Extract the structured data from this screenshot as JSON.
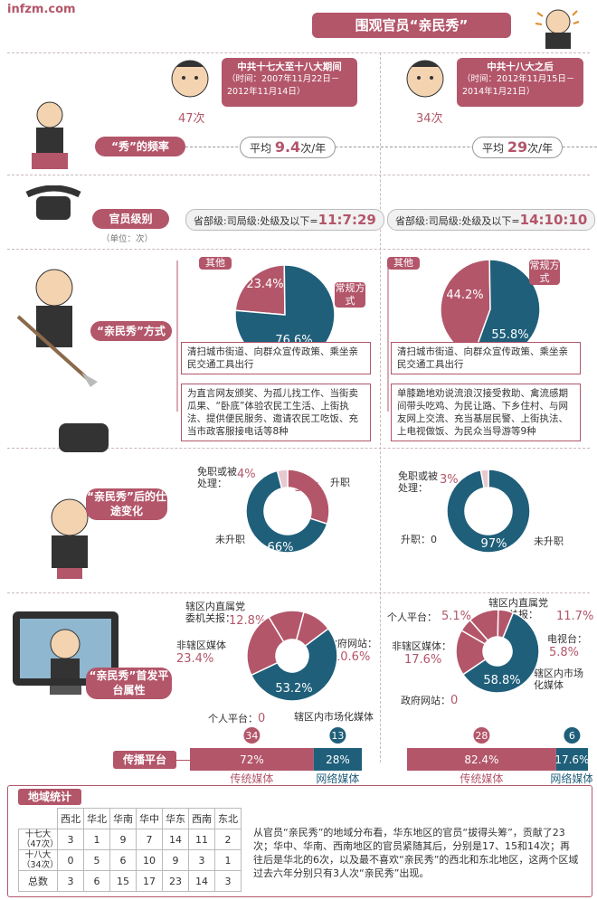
{
  "site": "infzm.com",
  "title": "围观官员“亲民秀”",
  "periods": [
    {
      "name": "中共十七大至十八大期间",
      "time": "（时间：2007年11月22日－2012年11月14日）",
      "count": "47次",
      "freq_label": "平均",
      "freq_value": "9.4",
      "freq_unit": "次/年",
      "levels_label": "省部级:司局级:处级及以下=",
      "levels_value": "11:7:29"
    },
    {
      "name": "中共十八大之后",
      "time": "（时间：2012年11月15日－2014年1月21日）",
      "count": "34次",
      "freq_label": "平均",
      "freq_value": "29",
      "freq_unit": "次/年",
      "levels_label": "省部级:司局级:处级及以下=",
      "levels_value": "14:10:10"
    }
  ],
  "row_labels": {
    "frequency": "“秀”的频率",
    "level": "官员级别",
    "level_unit": "（单位：次）",
    "method": "“亲民秀”方式",
    "career": "“亲民秀”后的仕途变化",
    "platform": "“亲民秀”首发平台属性",
    "spread": "传播平台"
  },
  "method": {
    "other_label": "其他",
    "regular_label": "常规方式",
    "left": {
      "regular_text": "清扫城市街道、向群众宣传政策、乘坐亲民交通工具出行",
      "other_text": "为直言网友颁奖、为孤儿找工作、当街卖瓜果、“卧底”体验农民工生活、上街执法、提供便民服务、邀请农民工吃饭、充当市政客服接电话等8种"
    },
    "right": {
      "regular_text": "清扫城市街道、向群众宣传政策、乘坐亲民交通工具出行",
      "other_text": "单膝跪地劝说流浪汉接受救助、禽流感期间带头吃鸡、为民让路、下乡住村、与网友网上交流、充当基层民警、上街执法、上电视做饭、为民众当导游等9种"
    }
  },
  "career_labels": {
    "dismissed": "免职或被处理：",
    "promoted": "升职",
    "not_promoted": "未升职",
    "promoted_zero": "升职：0"
  },
  "platform_labels": {
    "left": {
      "party_site": "辖区内直属党委机关报：",
      "nonlocal_media": "非辖区媒体",
      "gov_site": "政府网站：",
      "personal": "个人平台：",
      "local_market": "辖区内市场化媒体"
    },
    "right": {
      "personal": "个人平台：",
      "party_site": "辖区内直属党委机关报：",
      "tv": "电视台：",
      "nonlocal_media": "非辖区媒体：",
      "local_market": "辖区内市场化媒体",
      "gov_site": "政府网站："
    }
  },
  "spread_labels": {
    "traditional": "传统媒体",
    "online": "网络媒体"
  },
  "region": {
    "title": "地域统计",
    "headers": [
      "西北",
      "华北",
      "华南",
      "华中",
      "华东",
      "西南",
      "东北"
    ],
    "rows": [
      {
        "label": "十七大（47次）",
        "values": [
          "3",
          "1",
          "9",
          "7",
          "14",
          "11",
          "2"
        ]
      },
      {
        "label": "十八大（34次）",
        "values": [
          "0",
          "5",
          "6",
          "10",
          "9",
          "3",
          "1"
        ]
      },
      {
        "label": "总数",
        "values": [
          "3",
          "6",
          "15",
          "17",
          "23",
          "14",
          "3"
        ]
      }
    ],
    "summary": "从官员“亲民秀”的地域分布看，华东地区的官员“拔得头筹”，贡献了23次；华中、华南、西南地区的官员紧随其后，分别是17、15和14次；再往后是华北的6次，以及最不喜欢“亲民秀”的西北和东北地区，这两个区域过去六年分别只有3人次“亲民秀”出现。"
  },
  "chart_data": [
    {
      "type": "pie",
      "title": "“亲民秀”方式（十七大至十八大期间）",
      "labels": [
        "常规方式",
        "其他"
      ],
      "values": [
        76.6,
        23.4
      ],
      "colors": [
        "#1f5f7a",
        "#b3566a"
      ]
    },
    {
      "type": "pie",
      "title": "“亲民秀”方式（十八大之后）",
      "labels": [
        "常规方式",
        "其他"
      ],
      "values": [
        55.8,
        44.2
      ],
      "colors": [
        "#1f5f7a",
        "#b3566a"
      ]
    },
    {
      "type": "pie",
      "title": "仕途变化（十七大至十八大期间）",
      "labels": [
        "未升职",
        "升职",
        "免职或被处理"
      ],
      "values": [
        66,
        30,
        4
      ],
      "colors": [
        "#1f5f7a",
        "#b3566a",
        "#e8c9cf"
      ]
    },
    {
      "type": "pie",
      "title": "仕途变化（十八大之后）",
      "labels": [
        "未升职",
        "升职",
        "免职或被处理"
      ],
      "values": [
        97,
        0,
        3
      ],
      "colors": [
        "#1f5f7a",
        "#b3566a",
        "#e8c9cf"
      ]
    },
    {
      "type": "pie",
      "title": "首发平台属性（十七大至十八大期间）",
      "labels": [
        "辖区内市场化媒体",
        "非辖区媒体",
        "辖区内直属党委机关报",
        "政府网站",
        "个人平台"
      ],
      "values": [
        53.2,
        23.4,
        12.8,
        10.6,
        0
      ],
      "colors": [
        "#1f5f7a",
        "#b3566a",
        "#b3566a",
        "#b3566a",
        "#b3566a"
      ]
    },
    {
      "type": "pie",
      "title": "首发平台属性（十八大之后）",
      "labels": [
        "辖区内市场化媒体",
        "非辖区媒体",
        "辖区内直属党委机关报",
        "个人平台",
        "电视台",
        "政府网站"
      ],
      "values": [
        58.8,
        17.6,
        11.7,
        5.1,
        5.8,
        0
      ],
      "colors": [
        "#1f5f7a",
        "#b3566a",
        "#b3566a",
        "#b3566a",
        "#b3566a",
        "#b3566a"
      ]
    },
    {
      "type": "bar",
      "title": "传播平台",
      "series": [
        {
          "name": "传统媒体",
          "count": 34,
          "percent": 72,
          "period": "十七大至十八大期间"
        },
        {
          "name": "网络媒体",
          "count": 13,
          "percent": 28,
          "period": "十七大至十八大期间"
        },
        {
          "name": "传统媒体",
          "count": 28,
          "percent": 82.4,
          "period": "十八大之后"
        },
        {
          "name": "网络媒体",
          "count": 6,
          "percent": 17.6,
          "period": "十八大之后"
        }
      ]
    }
  ]
}
